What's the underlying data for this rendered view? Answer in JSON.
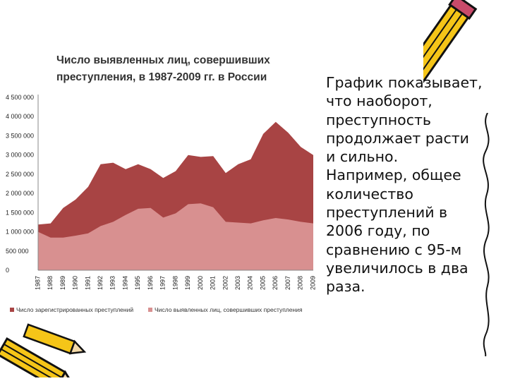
{
  "slide": {
    "side_text": "График показывает, что наоборот, преступность продолжает расти и сильно. Например, общее количество преступлений в 2006 году, по сравнению с 95-м увеличилось в два раза."
  },
  "decor": {
    "top_right": "pencil-icon",
    "bottom_left": "pencil-icon",
    "right_border": "wavy-line"
  },
  "chart_data": {
    "type": "area",
    "title": "Число выявленных лиц, совершивших преступления, в 1987-2009 гг. в России",
    "x": [
      "1987",
      "1988",
      "1989",
      "1990",
      "1991",
      "1992",
      "1993",
      "1994",
      "1995",
      "1996",
      "1997",
      "1998",
      "1999",
      "2000",
      "2001",
      "2002",
      "2003",
      "2004",
      "2005",
      "2006",
      "2007",
      "2008",
      "2009"
    ],
    "ylim": [
      0,
      4500000
    ],
    "yticks": [
      "0",
      "500 000",
      "1 000 000",
      "1 500 000",
      "2 000 000",
      "2 500 000",
      "3 000 000",
      "3 500 000",
      "4 000 000",
      "4 500 000"
    ],
    "ytick_values": [
      0,
      500000,
      1000000,
      1500000,
      2000000,
      2500000,
      3000000,
      3500000,
      4000000,
      4500000
    ],
    "series": [
      {
        "name": "Число зарегистрированных преступлений",
        "color": "#A84444",
        "values": [
          1190000,
          1220000,
          1620000,
          1840000,
          2170000,
          2760000,
          2800000,
          2630000,
          2760000,
          2630000,
          2400000,
          2580000,
          3000000,
          2950000,
          2970000,
          2530000,
          2760000,
          2890000,
          3550000,
          3860000,
          3580000,
          3210000,
          3000000
        ]
      },
      {
        "name": "Число выявленных лиц, совершивших преступления",
        "color": "#D89090",
        "values": [
          1000000,
          850000,
          850000,
          900000,
          960000,
          1150000,
          1260000,
          1440000,
          1600000,
          1620000,
          1370000,
          1480000,
          1720000,
          1740000,
          1640000,
          1260000,
          1240000,
          1220000,
          1300000,
          1360000,
          1320000,
          1260000,
          1220000
        ]
      }
    ],
    "grid": false,
    "legend_position": "bottom"
  }
}
